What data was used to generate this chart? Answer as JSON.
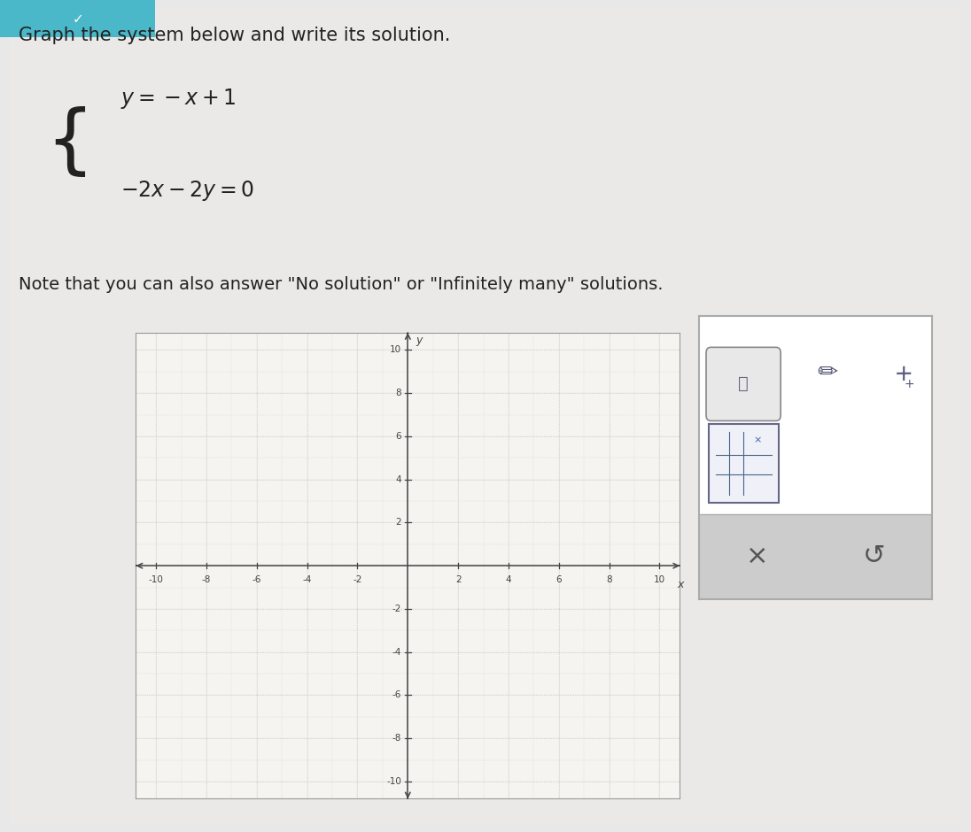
{
  "title_text": "Graph the system below and write its solution.",
  "note_text": "Note that you can also answer \"No solution\" or \"Infinitely many\" solutions.",
  "axis_min": -10,
  "axis_max": 10,
  "tick_step": 2,
  "figure_bg": "#e8e8e8",
  "graph_bg": "#f5f4f0",
  "text_color": "#222222",
  "axis_color": "#444444",
  "grid_fine_color": "#c8c8c0",
  "grid_major_color": "#b8b8b0",
  "title_fontsize": 15,
  "note_fontsize": 14,
  "eq_fontsize": 17,
  "tools_bg": "#ffffff",
  "tools_bottom_bg": "#cccccc",
  "tools_border": "#aaaaaa",
  "teal_color": "#4ab8c8"
}
